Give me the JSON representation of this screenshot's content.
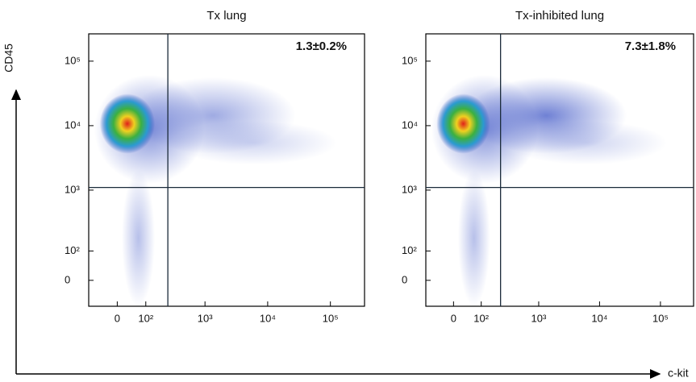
{
  "y_label": "CD45",
  "x_label": "c-kit",
  "chart_data": [
    {
      "type": "scatter",
      "title": "Tx lung",
      "annotation": "1.3±0.2%",
      "xscale": "biexponential",
      "yscale": "biexponential",
      "xlim": [
        -100,
        350000
      ],
      "ylim": [
        -85,
        265000
      ],
      "xticks": [
        0,
        {
          "value": 100,
          "label": "10²"
        },
        {
          "value": 1000,
          "label": "10³"
        },
        {
          "value": 10000,
          "label": "10⁴"
        },
        {
          "value": 100000,
          "label": "10⁵"
        }
      ],
      "yticks": [
        0,
        {
          "value": 100,
          "label": "10²"
        },
        {
          "value": 1000,
          "label": "10³"
        },
        {
          "value": 10000,
          "label": "10⁴"
        },
        {
          "value": 100000,
          "label": "10⁵"
        }
      ],
      "x_gate": 250,
      "y_gate": 1100
    },
    {
      "type": "scatter",
      "title": "Tx-inhibited lung",
      "annotation": "7.3±1.8%",
      "xscale": "biexponential",
      "yscale": "biexponential",
      "xlim": [
        -100,
        350000
      ],
      "ylim": [
        -85,
        265000
      ],
      "xticks": [
        0,
        {
          "value": 100,
          "label": "10²"
        },
        {
          "value": 1000,
          "label": "10³"
        },
        {
          "value": 10000,
          "label": "10⁴"
        },
        {
          "value": 100000,
          "label": "10⁵"
        }
      ],
      "yticks": [
        0,
        {
          "value": 100,
          "label": "10²"
        },
        {
          "value": 1000,
          "label": "10³"
        },
        {
          "value": 10000,
          "label": "10⁴"
        },
        {
          "value": 100000,
          "label": "10⁵"
        }
      ],
      "x_gate": 230,
      "y_gate": 1100
    }
  ]
}
